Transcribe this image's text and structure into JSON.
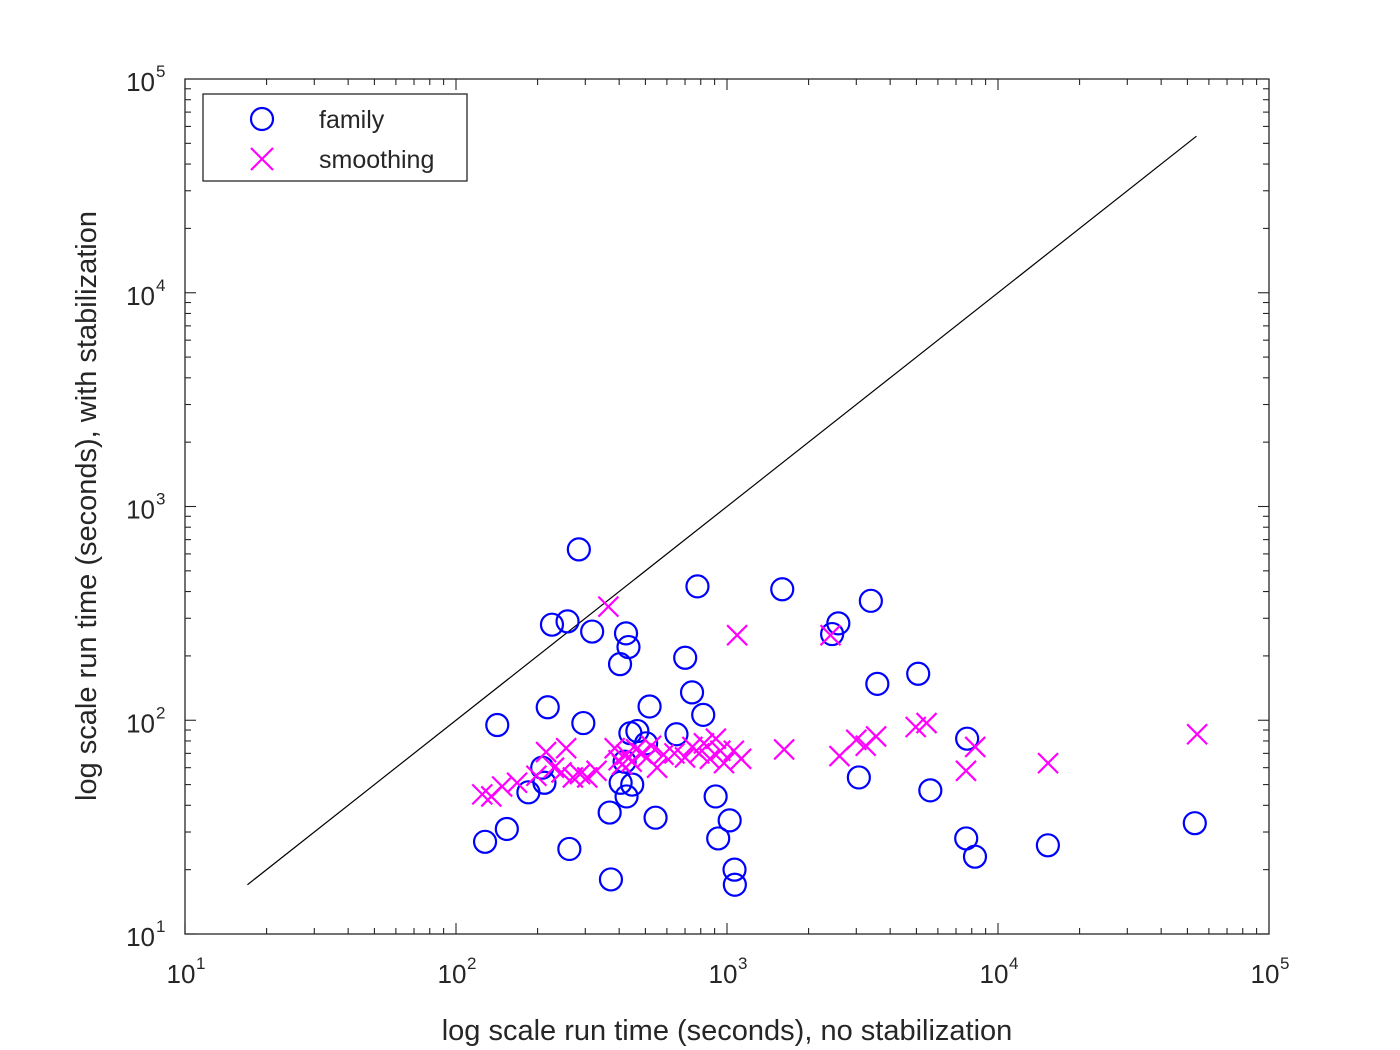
{
  "chart_data": {
    "type": "scatter",
    "title": "",
    "xlabel": "log scale run time (seconds), no stabilization",
    "ylabel": "log scale run time (seconds), with stabilization",
    "xscale": "log",
    "yscale": "log",
    "xlim": [
      10,
      100000
    ],
    "ylim": [
      10,
      100000
    ],
    "xticks": [
      {
        "base": "10",
        "exp": "1",
        "value": 10
      },
      {
        "base": "10",
        "exp": "2",
        "value": 100
      },
      {
        "base": "10",
        "exp": "3",
        "value": 1000
      },
      {
        "base": "10",
        "exp": "4",
        "value": 10000
      },
      {
        "base": "10",
        "exp": "5",
        "value": 100000
      }
    ],
    "yticks": [
      {
        "base": "10",
        "exp": "1",
        "value": 10
      },
      {
        "base": "10",
        "exp": "2",
        "value": 100
      },
      {
        "base": "10",
        "exp": "3",
        "value": 1000
      },
      {
        "base": "10",
        "exp": "4",
        "value": 10000
      },
      {
        "base": "10",
        "exp": "5",
        "value": 100000
      }
    ],
    "legend_position": "top-left",
    "reference_line": {
      "name": "y = x",
      "color": "#000000",
      "x": [
        17,
        54000
      ],
      "y": [
        17,
        54000
      ]
    },
    "series": [
      {
        "name": "family",
        "marker": "circle",
        "color": "#0000ff",
        "points": [
          [
            128,
            27
          ],
          [
            142,
            95
          ],
          [
            154,
            31
          ],
          [
            185,
            46
          ],
          [
            208,
            60
          ],
          [
            212,
            51
          ],
          [
            218,
            115
          ],
          [
            226,
            280
          ],
          [
            258,
            290
          ],
          [
            262,
            25
          ],
          [
            284,
            630
          ],
          [
            295,
            97
          ],
          [
            318,
            260
          ],
          [
            369,
            37
          ],
          [
            373,
            18
          ],
          [
            403,
            183
          ],
          [
            405,
            51
          ],
          [
            419,
            64
          ],
          [
            424,
            255
          ],
          [
            426,
            44
          ],
          [
            433,
            220
          ],
          [
            440,
            87
          ],
          [
            447,
            50
          ],
          [
            467,
            89
          ],
          [
            503,
            78
          ],
          [
            518,
            116
          ],
          [
            545,
            35
          ],
          [
            651,
            86
          ],
          [
            701,
            196
          ],
          [
            743,
            135
          ],
          [
            778,
            423
          ],
          [
            817,
            106
          ],
          [
            908,
            44
          ],
          [
            928,
            28
          ],
          [
            1023,
            34
          ],
          [
            1066,
            20
          ],
          [
            1069,
            17
          ],
          [
            1599,
            410
          ],
          [
            2443,
            253
          ],
          [
            2575,
            284
          ],
          [
            3066,
            54
          ],
          [
            3395,
            362
          ],
          [
            3587,
            148
          ],
          [
            5076,
            165
          ],
          [
            5627,
            47
          ],
          [
            7633,
            28
          ],
          [
            7693,
            82
          ],
          [
            8223,
            23
          ],
          [
            15279,
            26
          ],
          [
            53233,
            33
          ]
        ]
      },
      {
        "name": "smoothing",
        "marker": "x",
        "color": "#ff00ff",
        "points": [
          [
            125,
            45
          ],
          [
            135,
            44
          ],
          [
            148,
            49
          ],
          [
            168,
            51
          ],
          [
            198,
            55
          ],
          [
            215,
            71
          ],
          [
            230,
            60
          ],
          [
            245,
            57
          ],
          [
            255,
            74
          ],
          [
            270,
            54
          ],
          [
            287,
            56
          ],
          [
            305,
            54
          ],
          [
            330,
            58
          ],
          [
            365,
            340
          ],
          [
            385,
            74
          ],
          [
            398,
            65
          ],
          [
            410,
            62
          ],
          [
            425,
            69
          ],
          [
            445,
            64
          ],
          [
            462,
            73
          ],
          [
            485,
            70
          ],
          [
            507,
            67
          ],
          [
            525,
            76
          ],
          [
            552,
            60
          ],
          [
            583,
            69
          ],
          [
            640,
            70
          ],
          [
            700,
            67
          ],
          [
            745,
            75
          ],
          [
            790,
            70
          ],
          [
            822,
            78
          ],
          [
            865,
            66
          ],
          [
            910,
            82
          ],
          [
            945,
            72
          ],
          [
            975,
            63
          ],
          [
            1060,
            72
          ],
          [
            1090,
            250
          ],
          [
            1128,
            66
          ],
          [
            1625,
            73
          ],
          [
            2410,
            250
          ],
          [
            2600,
            68
          ],
          [
            3000,
            81
          ],
          [
            3250,
            76
          ],
          [
            3550,
            84
          ],
          [
            4970,
            93
          ],
          [
            5450,
            97
          ],
          [
            7620,
            58
          ],
          [
            8240,
            75
          ],
          [
            15300,
            63
          ],
          [
            54300,
            86
          ]
        ]
      }
    ]
  }
}
